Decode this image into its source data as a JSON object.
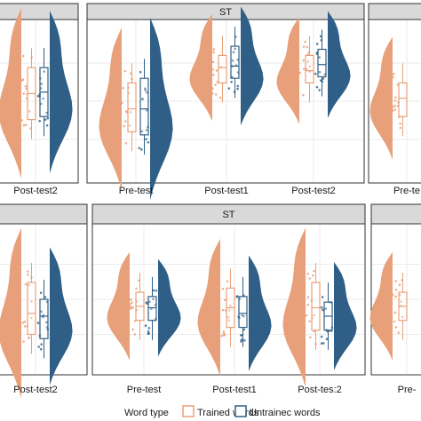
{
  "colors": {
    "trained": "#e8a07a",
    "untrained": "#2f5f86",
    "strip_bg": "#d9d9d9",
    "panel_border": "#333333",
    "grid": "#ebebeb"
  },
  "chart_data": [
    {
      "type": "raincloud",
      "panel": "top-left",
      "strip": "",
      "categories": [
        "Post-test2"
      ],
      "series": [
        {
          "name": "Trained words",
          "values": [
            {
              "q1": 0.38,
              "median": 0.55,
              "q3": 0.72
            }
          ]
        },
        {
          "name": "Untrained words",
          "values": [
            {
              "q1": 0.4,
              "median": 0.56,
              "q3": 0.72
            }
          ]
        }
      ]
    },
    {
      "type": "raincloud",
      "panel": "top-middle",
      "strip": "ST",
      "categories": [
        "Pre-test",
        "Post-test1",
        "Post-test2"
      ],
      "series": [
        {
          "name": "Trained words",
          "values": [
            {
              "q1": 0.3,
              "median": 0.45,
              "q3": 0.62
            },
            {
              "q1": 0.62,
              "median": 0.72,
              "q3": 0.8
            },
            {
              "q1": 0.62,
              "median": 0.7,
              "q3": 0.8
            }
          ]
        },
        {
          "name": "Untrained words",
          "values": [
            {
              "q1": 0.28,
              "median": 0.45,
              "q3": 0.65
            },
            {
              "q1": 0.65,
              "median": 0.73,
              "q3": 0.86
            },
            {
              "q1": 0.66,
              "median": 0.74,
              "q3": 0.84
            }
          ]
        }
      ]
    },
    {
      "type": "raincloud",
      "panel": "top-right",
      "strip": "",
      "categories": [
        "Pre-te"
      ],
      "series": [
        {
          "name": "Trained words",
          "values": [
            {
              "q1": 0.4,
              "median": 0.52,
              "q3": 0.62
            }
          ]
        }
      ]
    },
    {
      "type": "raincloud",
      "panel": "bottom-left",
      "strip": "",
      "categories": [
        "Post-test2"
      ],
      "series": [
        {
          "name": "Trained words",
          "values": [
            {
              "q1": 0.25,
              "median": 0.4,
              "q3": 0.62
            }
          ]
        },
        {
          "name": "Untrained words",
          "values": [
            {
              "q1": 0.22,
              "median": 0.38,
              "q3": 0.5
            }
          ]
        }
      ]
    },
    {
      "type": "raincloud",
      "panel": "bottom-middle",
      "strip": "ST",
      "categories": [
        "Pre-test",
        "Post-test1",
        "Post-tes:2"
      ],
      "series": [
        {
          "name": "Trained words",
          "values": [
            {
              "q1": 0.35,
              "median": 0.45,
              "q3": 0.55
            },
            {
              "q1": 0.3,
              "median": 0.44,
              "q3": 0.58
            },
            {
              "q1": 0.28,
              "median": 0.44,
              "q3": 0.62
            }
          ]
        },
        {
          "name": "Untrained words",
          "values": [
            {
              "q1": 0.35,
              "median": 0.44,
              "q3": 0.52
            },
            {
              "q1": 0.3,
              "median": 0.4,
              "q3": 0.52
            },
            {
              "q1": 0.28,
              "median": 0.38,
              "q3": 0.48
            }
          ]
        }
      ]
    },
    {
      "type": "raincloud",
      "panel": "bottom-right",
      "strip": "",
      "categories": [
        "Pre-"
      ],
      "series": [
        {
          "name": "Trained words",
          "values": [
            {
              "q1": 0.35,
              "median": 0.45,
              "q3": 0.55
            }
          ]
        }
      ]
    }
  ],
  "legend": {
    "title": "Word type",
    "items": [
      "Trained words",
      "Untrainec words"
    ]
  }
}
